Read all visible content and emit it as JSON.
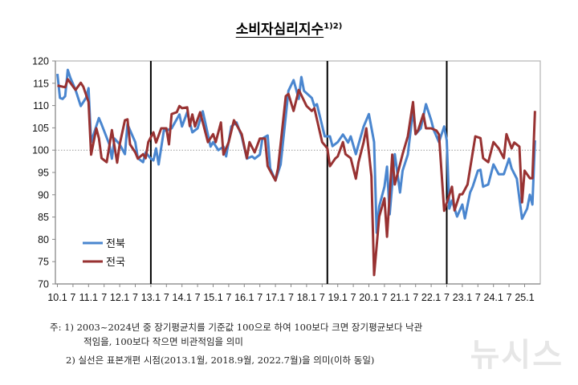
{
  "title": "소비자심리지수",
  "title_sup": "1)2)",
  "notes": {
    "prefix": "주:",
    "n1_mark": "1)",
    "n1_line1": "2003~2024년 중 장기평균치를 기준값 100으로 하여 100보다 크면 장기평균보다 낙관",
    "n1_line2": "적임을, 100보다 작으면 비관적임을 의미",
    "n2_mark": "2)",
    "n2_line1": "실선은 표본개편 시점(2013.1월, 2018.9월, 2022.7월)을 의미(이하 동일)"
  },
  "watermark": "뉴시스",
  "chart_data": {
    "type": "line",
    "title": "소비자심리지수",
    "xlabel": "",
    "ylabel": "",
    "ylim": [
      70,
      120
    ],
    "yticks": [
      70,
      75,
      80,
      85,
      90,
      95,
      100,
      105,
      110,
      115,
      120
    ],
    "xlim": [
      "2010-01",
      "2025-05"
    ],
    "xtick_labels": [
      {
        "date": "2010-01",
        "label": "10.1"
      },
      {
        "date": "2010-07",
        "label": "7"
      },
      {
        "date": "2011-01",
        "label": "11.1"
      },
      {
        "date": "2011-07",
        "label": "7"
      },
      {
        "date": "2012-01",
        "label": "12.1"
      },
      {
        "date": "2012-07",
        "label": "7"
      },
      {
        "date": "2013-01",
        "label": "13.1"
      },
      {
        "date": "2013-07",
        "label": "7"
      },
      {
        "date": "2014-01",
        "label": "14.1"
      },
      {
        "date": "2014-07",
        "label": "7"
      },
      {
        "date": "2015-01",
        "label": "15.1"
      },
      {
        "date": "2015-07",
        "label": "7"
      },
      {
        "date": "2016-01",
        "label": "16.1"
      },
      {
        "date": "2016-07",
        "label": "7"
      },
      {
        "date": "2017-01",
        "label": "17.1"
      },
      {
        "date": "2017-07",
        "label": "7"
      },
      {
        "date": "2018-01",
        "label": "18.1"
      },
      {
        "date": "2018-07",
        "label": "7"
      },
      {
        "date": "2019-01",
        "label": "19.1"
      },
      {
        "date": "2019-07",
        "label": "7"
      },
      {
        "date": "2020-01",
        "label": "20.1"
      },
      {
        "date": "2020-07",
        "label": "7"
      },
      {
        "date": "2021-01",
        "label": "21.1"
      },
      {
        "date": "2021-07",
        "label": "7"
      },
      {
        "date": "2022-01",
        "label": "22.1"
      },
      {
        "date": "2022-07",
        "label": "7"
      },
      {
        "date": "2023-01",
        "label": "23.1"
      },
      {
        "date": "2023-07",
        "label": "7"
      },
      {
        "date": "2024-01",
        "label": "24.1"
      },
      {
        "date": "2024-07",
        "label": "7"
      },
      {
        "date": "2025-01",
        "label": "25.1"
      }
    ],
    "reference_line": 100,
    "vertical_markers": [
      "2013-01",
      "2018-09",
      "2022-07"
    ],
    "grid": false,
    "legend_position": "bottom-left",
    "series": [
      {
        "name": "전북",
        "color": "#4a86cf",
        "points": [
          [
            "2010-01",
            117.1
          ],
          [
            "2010-02",
            111.7
          ],
          [
            "2010-03",
            111.5
          ],
          [
            "2010-04",
            112.1
          ],
          [
            "2010-05",
            118.0
          ],
          [
            "2010-06",
            116.2
          ],
          [
            "2010-08",
            113.5
          ],
          [
            "2010-10",
            109.9
          ],
          [
            "2010-12",
            111.7
          ],
          [
            "2011-01",
            113.9
          ],
          [
            "2011-02",
            101.8
          ],
          [
            "2011-05",
            107.2
          ],
          [
            "2011-06",
            105.8
          ],
          [
            "2011-09",
            101.3
          ],
          [
            "2011-10",
            98.1
          ],
          [
            "2011-11",
            102.6
          ],
          [
            "2012-01",
            101.3
          ],
          [
            "2012-03",
            99.1
          ],
          [
            "2012-04",
            105.8
          ],
          [
            "2012-06",
            103.1
          ],
          [
            "2012-07",
            101.8
          ],
          [
            "2012-08",
            98.2
          ],
          [
            "2012-10",
            97.3
          ],
          [
            "2012-11",
            99.5
          ],
          [
            "2013-01",
            98.1
          ],
          [
            "2013-02",
            97.7
          ],
          [
            "2013-03",
            100.4
          ],
          [
            "2013-04",
            96.8
          ],
          [
            "2013-06",
            104.4
          ],
          [
            "2013-07",
            104.4
          ],
          [
            "2013-09",
            104.9
          ],
          [
            "2013-12",
            108.0
          ],
          [
            "2014-01",
            105.3
          ],
          [
            "2014-03",
            108.5
          ],
          [
            "2014-05",
            104.0
          ],
          [
            "2014-07",
            104.9
          ],
          [
            "2014-09",
            108.7
          ],
          [
            "2014-12",
            100.8
          ],
          [
            "2015-01",
            101.8
          ],
          [
            "2015-03",
            100.0
          ],
          [
            "2015-05",
            100.8
          ],
          [
            "2015-06",
            98.6
          ],
          [
            "2015-08",
            105.3
          ],
          [
            "2015-10",
            106.2
          ],
          [
            "2015-12",
            103.1
          ],
          [
            "2016-02",
            98.1
          ],
          [
            "2016-04",
            98.6
          ],
          [
            "2016-05",
            98.1
          ],
          [
            "2016-07",
            99.0
          ],
          [
            "2016-08",
            102.6
          ],
          [
            "2016-10",
            103.3
          ],
          [
            "2016-11",
            95.9
          ],
          [
            "2017-01",
            93.2
          ],
          [
            "2017-03",
            96.8
          ],
          [
            "2017-06",
            113.3
          ],
          [
            "2017-08",
            115.7
          ],
          [
            "2017-10",
            111.5
          ],
          [
            "2017-11",
            116.4
          ],
          [
            "2017-12",
            113.3
          ],
          [
            "2018-03",
            111.7
          ],
          [
            "2018-04",
            109.9
          ],
          [
            "2018-05",
            110.3
          ],
          [
            "2018-08",
            103.1
          ],
          [
            "2018-10",
            103.1
          ],
          [
            "2018-11",
            100.9
          ],
          [
            "2019-01",
            101.8
          ],
          [
            "2019-03",
            103.5
          ],
          [
            "2019-05",
            101.7
          ],
          [
            "2019-06",
            103.1
          ],
          [
            "2019-08",
            99.1
          ],
          [
            "2019-09",
            101.3
          ],
          [
            "2019-11",
            105.3
          ],
          [
            "2020-01",
            108.1
          ],
          [
            "2020-03",
            101.8
          ],
          [
            "2020-04",
            81.5
          ],
          [
            "2020-05",
            87.4
          ],
          [
            "2020-07",
            91.8
          ],
          [
            "2020-08",
            96.3
          ],
          [
            "2020-09",
            85.6
          ],
          [
            "2020-11",
            99.1
          ],
          [
            "2021-01",
            90.5
          ],
          [
            "2021-02",
            95.4
          ],
          [
            "2021-04",
            99.0
          ],
          [
            "2021-06",
            109.0
          ],
          [
            "2021-07",
            103.6
          ],
          [
            "2021-09",
            104.9
          ],
          [
            "2021-11",
            110.3
          ],
          [
            "2022-01",
            106.7
          ],
          [
            "2022-02",
            104.5
          ],
          [
            "2022-04",
            101.8
          ],
          [
            "2022-06",
            105.3
          ],
          [
            "2022-07",
            102.2
          ],
          [
            "2022-08",
            86.9
          ],
          [
            "2022-09",
            88.7
          ],
          [
            "2022-11",
            85.1
          ],
          [
            "2023-01",
            87.8
          ],
          [
            "2023-02",
            84.7
          ],
          [
            "2023-04",
            90.5
          ],
          [
            "2023-05",
            91.8
          ],
          [
            "2023-07",
            95.4
          ],
          [
            "2023-08",
            95.6
          ],
          [
            "2023-09",
            91.8
          ],
          [
            "2023-11",
            92.3
          ],
          [
            "2024-01",
            96.8
          ],
          [
            "2024-03",
            94.6
          ],
          [
            "2024-05",
            94.6
          ],
          [
            "2024-07",
            98.1
          ],
          [
            "2024-08",
            95.9
          ],
          [
            "2024-10",
            93.6
          ],
          [
            "2024-12",
            84.6
          ],
          [
            "2025-02",
            86.9
          ],
          [
            "2025-03",
            90.0
          ],
          [
            "2025-04",
            87.8
          ],
          [
            "2025-05",
            102.2
          ]
        ]
      },
      {
        "name": "전국",
        "color": "#983232",
        "points": [
          [
            "2010-01",
            114.5
          ],
          [
            "2010-04",
            114.1
          ],
          [
            "2010-05",
            115.9
          ],
          [
            "2010-08",
            113.5
          ],
          [
            "2010-10",
            115.1
          ],
          [
            "2010-11",
            114.2
          ],
          [
            "2011-01",
            110.8
          ],
          [
            "2011-02",
            99.0
          ],
          [
            "2011-04",
            104.9
          ],
          [
            "2011-05",
            102.7
          ],
          [
            "2011-06",
            98.2
          ],
          [
            "2011-08",
            97.3
          ],
          [
            "2011-10",
            104.5
          ],
          [
            "2011-12",
            97.2
          ],
          [
            "2012-01",
            101.3
          ],
          [
            "2012-03",
            106.7
          ],
          [
            "2012-04",
            106.9
          ],
          [
            "2012-05",
            101.3
          ],
          [
            "2012-07",
            99.5
          ],
          [
            "2012-08",
            98.1
          ],
          [
            "2012-10",
            99.1
          ],
          [
            "2012-11",
            98.2
          ],
          [
            "2012-12",
            101.8
          ],
          [
            "2013-02",
            104.0
          ],
          [
            "2013-03",
            101.7
          ],
          [
            "2013-05",
            104.9
          ],
          [
            "2013-07",
            104.9
          ],
          [
            "2013-08",
            101.3
          ],
          [
            "2013-09",
            108.1
          ],
          [
            "2013-11",
            108.5
          ],
          [
            "2013-12",
            109.9
          ],
          [
            "2014-01",
            109.4
          ],
          [
            "2014-03",
            109.6
          ],
          [
            "2014-04",
            105.4
          ],
          [
            "2014-05",
            108.0
          ],
          [
            "2014-06",
            105.3
          ],
          [
            "2014-08",
            108.5
          ],
          [
            "2014-11",
            101.8
          ],
          [
            "2015-01",
            103.6
          ],
          [
            "2015-02",
            101.8
          ],
          [
            "2015-04",
            106.2
          ],
          [
            "2015-05",
            99.0
          ],
          [
            "2015-07",
            101.8
          ],
          [
            "2015-09",
            106.7
          ],
          [
            "2015-12",
            103.6
          ],
          [
            "2016-02",
            98.2
          ],
          [
            "2016-03",
            101.8
          ],
          [
            "2016-05",
            99.5
          ],
          [
            "2016-07",
            102.6
          ],
          [
            "2016-09",
            102.6
          ],
          [
            "2016-10",
            96.4
          ],
          [
            "2017-01",
            93.2
          ],
          [
            "2017-02",
            95.9
          ],
          [
            "2017-05",
            112.1
          ],
          [
            "2017-06",
            112.6
          ],
          [
            "2017-08",
            108.8
          ],
          [
            "2017-10",
            113.5
          ],
          [
            "2018-01",
            109.9
          ],
          [
            "2018-03",
            108.8
          ],
          [
            "2018-04",
            109.4
          ],
          [
            "2018-07",
            101.8
          ],
          [
            "2018-09",
            100.4
          ],
          [
            "2018-10",
            96.4
          ],
          [
            "2018-12",
            98.1
          ],
          [
            "2019-01",
            98.6
          ],
          [
            "2019-03",
            101.8
          ],
          [
            "2019-04",
            99.1
          ],
          [
            "2019-06",
            98.2
          ],
          [
            "2019-08",
            93.6
          ],
          [
            "2019-09",
            97.3
          ],
          [
            "2019-11",
            101.8
          ],
          [
            "2019-12",
            104.9
          ],
          [
            "2020-02",
            94.1
          ],
          [
            "2020-03",
            72.0
          ],
          [
            "2020-05",
            85.1
          ],
          [
            "2020-07",
            89.2
          ],
          [
            "2020-08",
            80.6
          ],
          [
            "2020-10",
            99.0
          ],
          [
            "2020-11",
            92.3
          ],
          [
            "2021-02",
            99.1
          ],
          [
            "2021-04",
            103.1
          ],
          [
            "2021-06",
            110.8
          ],
          [
            "2021-07",
            103.6
          ],
          [
            "2021-08",
            104.5
          ],
          [
            "2021-10",
            108.1
          ],
          [
            "2021-11",
            104.9
          ],
          [
            "2022-01",
            104.9
          ],
          [
            "2022-03",
            104.4
          ],
          [
            "2022-04",
            103.5
          ],
          [
            "2022-06",
            86.4
          ],
          [
            "2022-09",
            91.8
          ],
          [
            "2022-10",
            86.5
          ],
          [
            "2022-12",
            90.1
          ],
          [
            "2023-01",
            90.1
          ],
          [
            "2023-03",
            92.3
          ],
          [
            "2023-06",
            103.1
          ],
          [
            "2023-08",
            102.7
          ],
          [
            "2023-09",
            98.2
          ],
          [
            "2023-11",
            97.3
          ],
          [
            "2024-01",
            101.8
          ],
          [
            "2024-03",
            100.4
          ],
          [
            "2024-05",
            98.2
          ],
          [
            "2024-06",
            103.6
          ],
          [
            "2024-08",
            100.4
          ],
          [
            "2024-09",
            101.7
          ],
          [
            "2024-11",
            100.8
          ],
          [
            "2024-12",
            88.3
          ],
          [
            "2025-01",
            95.4
          ],
          [
            "2025-03",
            93.7
          ],
          [
            "2025-04",
            93.7
          ],
          [
            "2025-05",
            108.8
          ]
        ]
      }
    ]
  }
}
